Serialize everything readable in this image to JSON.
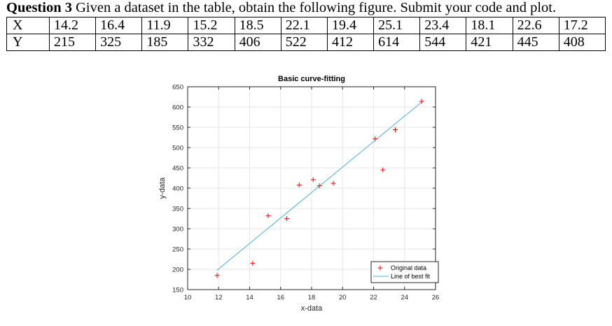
{
  "question": {
    "label": "Question 3",
    "text": " Given a dataset in the table, obtain the following figure. Submit your code and plot."
  },
  "table": {
    "x_header": "X",
    "y_header": "Y",
    "x_values": [
      "14.2",
      "16.4",
      "11.9",
      "15.2",
      "18.5",
      "22.1",
      "19.4",
      "25.1",
      "23.4",
      "18.1",
      "22.6",
      "17.2"
    ],
    "y_values": [
      "215",
      "325",
      "185",
      "332",
      "406",
      "522",
      "412",
      "614",
      "544",
      "421",
      "445",
      "408"
    ]
  },
  "chart_data": {
    "type": "scatter",
    "title": "Basic curve-fitting",
    "xlabel": "x-data",
    "ylabel": "y-data",
    "xlim": [
      10,
      26
    ],
    "ylim": [
      150,
      650
    ],
    "xticks": [
      10,
      12,
      14,
      16,
      18,
      20,
      22,
      24,
      26
    ],
    "yticks": [
      150,
      200,
      250,
      300,
      350,
      400,
      450,
      500,
      550,
      600,
      650
    ],
    "grid": true,
    "series": [
      {
        "name": "Original data",
        "kind": "points",
        "marker": "+",
        "color": "#ff0000",
        "x": [
          14.2,
          16.4,
          11.9,
          15.2,
          18.5,
          22.1,
          19.4,
          25.1,
          23.4,
          18.1,
          22.6,
          17.2
        ],
        "y": [
          215,
          325,
          185,
          332,
          406,
          522,
          412,
          614,
          544,
          421,
          445,
          408
        ]
      },
      {
        "name": "Line of best fit",
        "kind": "line",
        "color": "#0072bd",
        "x": [
          11.9,
          25.1
        ],
        "y": [
          198,
          612
        ]
      }
    ],
    "legend": "bottom-right"
  }
}
